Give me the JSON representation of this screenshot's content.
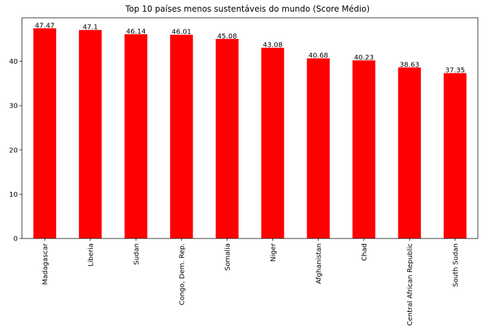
{
  "chart_data": {
    "type": "bar",
    "title": "Top 10 países menos sustentáveis do mundo (Score Médio)",
    "xlabel": "",
    "ylabel": "",
    "categories": [
      "Madagascar",
      "Liberia",
      "Sudan",
      "Congo, Dem. Rep.",
      "Somalia",
      "Niger",
      "Afghanistan",
      "Chad",
      "Central African Republic",
      "South Sudan"
    ],
    "values": [
      47.47,
      47.1,
      46.14,
      46.01,
      45.08,
      43.08,
      40.68,
      40.23,
      38.63,
      37.35
    ],
    "data_labels": [
      "47.47",
      "47.1",
      "46.14",
      "46.01",
      "45.08",
      "43.08",
      "40.68",
      "40.23",
      "38.63",
      "37.35"
    ],
    "ylim": [
      0,
      49.84
    ],
    "yticks": [
      0,
      10,
      20,
      30,
      40
    ],
    "bar_color": "#ff0000",
    "grid": false,
    "legend": "none"
  }
}
